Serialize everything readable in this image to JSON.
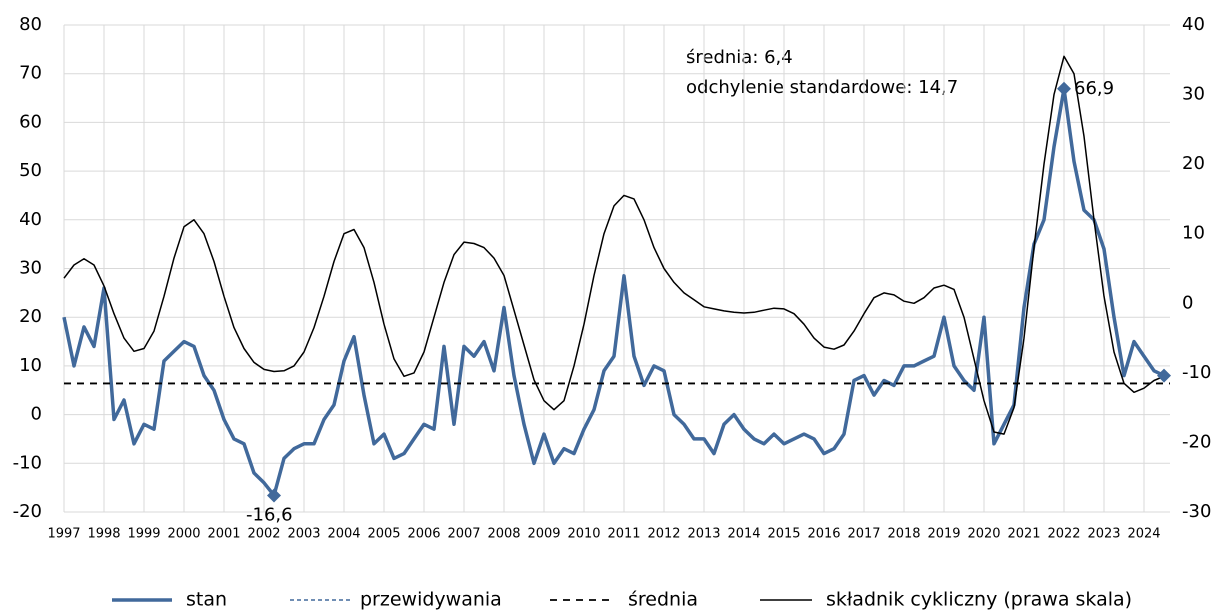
{
  "chart_data": {
    "type": "line",
    "x": [
      1997,
      1997.25,
      1997.5,
      1997.75,
      1998,
      1998.25,
      1998.5,
      1998.75,
      1999,
      1999.25,
      1999.5,
      1999.75,
      2000,
      2000.25,
      2000.5,
      2000.75,
      2001,
      2001.25,
      2001.5,
      2001.75,
      2002,
      2002.25,
      2002.5,
      2002.75,
      2003,
      2003.25,
      2003.5,
      2003.75,
      2004,
      2004.25,
      2004.5,
      2004.75,
      2005,
      2005.25,
      2005.5,
      2005.75,
      2006,
      2006.25,
      2006.5,
      2006.75,
      2007,
      2007.25,
      2007.5,
      2007.75,
      2008,
      2008.25,
      2008.5,
      2008.75,
      2009,
      2009.25,
      2009.5,
      2009.75,
      2010,
      2010.25,
      2010.5,
      2010.75,
      2011,
      2011.25,
      2011.5,
      2011.75,
      2012,
      2012.25,
      2012.5,
      2012.75,
      2013,
      2013.25,
      2013.5,
      2013.75,
      2014,
      2014.25,
      2014.5,
      2014.75,
      2015,
      2015.25,
      2015.5,
      2015.75,
      2016,
      2016.25,
      2016.5,
      2016.75,
      2017,
      2017.25,
      2017.5,
      2017.75,
      2018,
      2018.25,
      2018.5,
      2018.75,
      2019,
      2019.25,
      2019.5,
      2019.75,
      2020,
      2020.25,
      2020.5,
      2020.75,
      2021,
      2021.25,
      2021.5,
      2021.75,
      2022,
      2022.25,
      2022.5,
      2022.75,
      2023,
      2023.25,
      2023.5,
      2023.75,
      2024,
      2024.25,
      2024.5
    ],
    "series": [
      {
        "name": "stan",
        "color": "#41699b",
        "width": 3.5,
        "values": [
          20,
          10,
          18,
          14,
          26,
          -1,
          3,
          -6,
          -2,
          -3,
          11,
          13,
          15,
          14,
          8,
          5,
          -1,
          -5,
          -6,
          -12,
          -14,
          -16.6,
          -9,
          -7,
          -6,
          -6,
          -1,
          2,
          11,
          16,
          4,
          -6,
          -4,
          -9,
          -8,
          -5,
          -2,
          -3,
          14,
          -2,
          14,
          12,
          15,
          9,
          22,
          8,
          -2,
          -10,
          -4,
          -10,
          -7,
          -8,
          -3,
          1,
          9,
          12,
          28.5,
          12,
          6,
          10,
          9,
          0,
          -2,
          -5,
          -5,
          -8,
          -2,
          0,
          -3,
          -5,
          -6,
          -4,
          -6,
          -5,
          -4,
          -5,
          -8,
          -7,
          -4,
          7,
          8,
          4,
          7,
          6,
          10,
          10,
          11,
          12,
          20,
          10,
          7,
          5,
          20,
          -6,
          -2,
          2,
          22,
          35,
          40,
          55,
          66.9,
          52,
          42,
          40,
          34,
          20,
          8,
          15,
          12,
          9,
          8
        ]
      },
      {
        "name": "przewidywania",
        "color": "#41699b",
        "width": 1.5,
        "dash": "4,3",
        "x": [
          2024.25,
          2024.5
        ],
        "values": [
          9,
          8
        ]
      },
      {
        "name": "średnia",
        "color": "#000000",
        "width": 1.8,
        "dash": "7,6",
        "hline": 6.4
      },
      {
        "name": "składnik cykliczny (prawa skala)",
        "color": "#000000",
        "width": 1.5,
        "axis": "y2",
        "values": [
          3.6,
          5.5,
          6.4,
          5.5,
          2.5,
          -1.5,
          -5,
          -6.9,
          -6.5,
          -4,
          1,
          6.5,
          11,
          12,
          10,
          6,
          1,
          -3.5,
          -6.5,
          -8.5,
          -9.5,
          -9.8,
          -9.7,
          -9,
          -7,
          -3.5,
          1,
          6,
          10,
          10.6,
          8,
          3,
          -3,
          -8,
          -10.5,
          -10,
          -7,
          -2,
          3,
          7,
          8.8,
          8.6,
          8,
          6.5,
          4,
          -1,
          -6,
          -11,
          -14,
          -15.3,
          -14,
          -9,
          -3,
          4,
          10,
          14,
          15.5,
          15,
          12,
          8,
          5,
          3,
          1.5,
          0.5,
          -0.5,
          -0.8,
          -1.1,
          -1.3,
          -1.4,
          -1.3,
          -1,
          -0.7,
          -0.8,
          -1.5,
          -3,
          -5,
          -6.3,
          -6.6,
          -6,
          -4,
          -1.5,
          0.8,
          1.5,
          1.2,
          0.3,
          0,
          0.8,
          2.2,
          2.6,
          2,
          -2,
          -8,
          -14,
          -18.5,
          -18.8,
          -15,
          -5,
          8,
          20,
          30,
          35.5,
          33,
          24,
          12,
          1,
          -7,
          -11.5,
          -12.8,
          -12.2,
          -11.1,
          -10.5
        ]
      }
    ],
    "annotations": [
      "średnia: 6,4",
      "odchylenie standardowe: 14,7"
    ],
    "point_labels": [
      {
        "x": 2022,
        "y": 66.9,
        "label": "66,9"
      },
      {
        "x": 2002.25,
        "y": -16.6,
        "label": "-16,6"
      }
    ],
    "xlim": [
      1997,
      2024.65
    ],
    "xticks": [
      1997,
      1998,
      1999,
      2000,
      2001,
      2002,
      2003,
      2004,
      2005,
      2006,
      2007,
      2008,
      2009,
      2010,
      2011,
      2012,
      2013,
      2014,
      2015,
      2016,
      2017,
      2018,
      2019,
      2020,
      2021,
      2022,
      2023,
      2024
    ],
    "ylim": [
      -20,
      80
    ],
    "yticks": [
      -20,
      -10,
      0,
      10,
      20,
      30,
      40,
      50,
      60,
      70,
      80
    ],
    "y2lim": [
      -30,
      40
    ],
    "y2ticks": [
      -30,
      -20,
      -10,
      0,
      10,
      20,
      30,
      40
    ],
    "grid": true,
    "legend": "bottom"
  }
}
